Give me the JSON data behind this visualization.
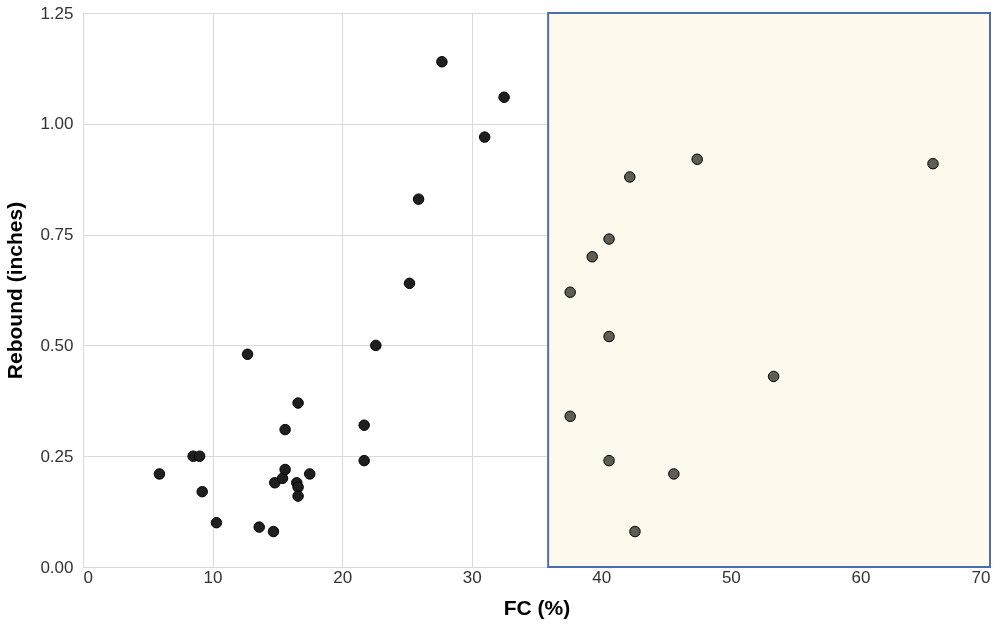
{
  "chart_data": {
    "type": "scatter",
    "xlabel": "FC (%)",
    "ylabel": "Rebound (inches)",
    "xlim": [
      0,
      70
    ],
    "xticks": [
      0,
      10,
      20,
      30,
      40,
      50,
      60,
      70
    ],
    "ylim": [
      0,
      1.25
    ],
    "yticks": [
      {
        "value": 0,
        "label": "0.00"
      },
      {
        "value": 0.25,
        "label": "0.25"
      },
      {
        "value": 0.5,
        "label": "0.50"
      },
      {
        "value": 0.75,
        "label": "0.75"
      },
      {
        "value": 1,
        "label": "1.00"
      },
      {
        "value": 1.25,
        "label": "1.25"
      }
    ],
    "grid": true,
    "marker": "circle",
    "bands": [
      {
        "axis": "x",
        "from": 35.9,
        "to": 70,
        "color": "#fdf9ec"
      }
    ],
    "series": [
      {
        "color": "#1f1f1f",
        "x": [
          5.9,
          8.5,
          9.0,
          9.2,
          10.3,
          12.7,
          13.6,
          14.7,
          14.8,
          15.4,
          15.6,
          15.6,
          16.6,
          16.5,
          16.6,
          16.6,
          17.5,
          21.7,
          21.7,
          22.6,
          25.2,
          25.9,
          27.7,
          31.0,
          32.5
        ],
        "values": [
          0.21,
          0.25,
          0.25,
          0.17,
          0.1,
          0.48,
          0.09,
          0.08,
          0.19,
          0.2,
          0.31,
          0.22,
          0.37,
          0.19,
          0.18,
          0.16,
          0.21,
          0.32,
          0.24,
          0.5,
          0.64,
          0.83,
          1.14,
          0.97,
          1.06
        ]
      },
      {
        "color": "#5e5e55",
        "x": [
          37.6,
          37.6,
          39.3,
          40.6,
          40.6,
          40.6,
          42.2,
          42.6,
          45.6,
          47.4,
          53.3,
          65.6
        ],
        "values": [
          0.62,
          0.34,
          0.7,
          0.74,
          0.52,
          0.24,
          0.88,
          0.08,
          0.21,
          0.92,
          0.43,
          0.91
        ]
      }
    ]
  }
}
